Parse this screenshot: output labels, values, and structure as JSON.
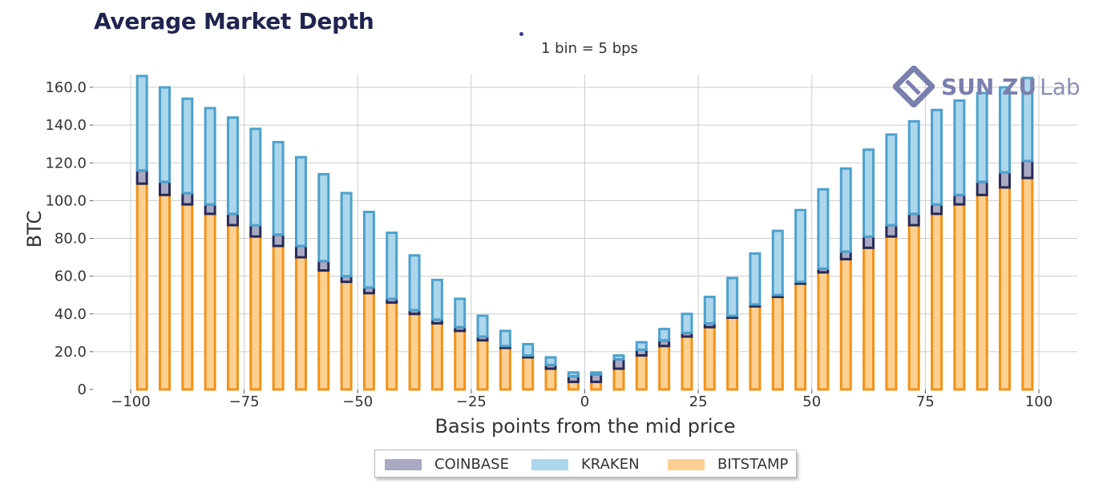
{
  "header": {
    "title": "Average Market Depth",
    "subtitle": "1 bin = 5 bps"
  },
  "logo": {
    "bold_text": "SUN ZU",
    "light_text": "Lab",
    "icon": "sunzu-logo-icon",
    "color": "#7a7fae"
  },
  "legend": {
    "items": [
      {
        "label": "COINBASE",
        "color": "#a9a9c3"
      },
      {
        "label": "KRAKEN",
        "color": "#acd6ec"
      },
      {
        "label": "BITSTAMP",
        "color": "#fdd091"
      }
    ]
  },
  "colors": {
    "coinbase_fill": "#a9a9c3",
    "coinbase_edge": "#262b57",
    "kraken_fill": "#acd6ec",
    "kraken_edge": "#4da1cc",
    "bitstamp_fill": "#fdd091",
    "bitstamp_edge": "#f29219",
    "grid": "#cccccc"
  },
  "chart_data": {
    "type": "bar",
    "stacked": true,
    "title": "Average Market Depth",
    "subtitle": "1 bin = 5 bps",
    "xlabel": "Basis points from the mid price",
    "ylabel": "BTC",
    "xlim": [
      -100,
      100
    ],
    "ylim": [
      0,
      165
    ],
    "xticks": [
      -100,
      -75,
      -50,
      -25,
      0,
      25,
      50,
      75,
      100
    ],
    "xtick_labels": [
      "−100",
      "−75",
      "−50",
      "−25",
      "0",
      "25",
      "50",
      "75",
      "100"
    ],
    "yticks": [
      0,
      20,
      40,
      60,
      80,
      100,
      120,
      140,
      160
    ],
    "ytick_labels": [
      "0",
      "20.0",
      "40.0",
      "60.0",
      "80.0",
      "100.0",
      "120.0",
      "140.0",
      "160.0"
    ],
    "grid": true,
    "legend_position": "bottom-center",
    "x": [
      -97.5,
      -92.5,
      -87.5,
      -82.5,
      -77.5,
      -72.5,
      -67.5,
      -62.5,
      -57.5,
      -52.5,
      -47.5,
      -42.5,
      -37.5,
      -32.5,
      -27.5,
      -22.5,
      -17.5,
      -12.5,
      -7.5,
      -2.5,
      2.5,
      7.5,
      12.5,
      17.5,
      22.5,
      27.5,
      32.5,
      37.5,
      42.5,
      47.5,
      52.5,
      57.5,
      62.5,
      67.5,
      72.5,
      77.5,
      82.5,
      87.5,
      92.5,
      97.5
    ],
    "series": [
      {
        "name": "BITSTAMP",
        "values": [
          109,
          103,
          98,
          93,
          87,
          81,
          76,
          70,
          63,
          57,
          51,
          46,
          40,
          35,
          31,
          26,
          22,
          17,
          11,
          4,
          4,
          11,
          18,
          23,
          28,
          33,
          38,
          44,
          49,
          56,
          62,
          69,
          75,
          81,
          87,
          93,
          98,
          103,
          107,
          112
        ]
      },
      {
        "name": "COINBASE",
        "values": [
          7,
          7,
          6,
          5,
          6,
          6,
          6,
          6,
          5,
          3,
          3,
          2,
          2,
          2,
          2,
          2,
          1,
          1,
          2,
          3,
          4,
          5,
          3,
          3,
          2,
          2,
          1,
          1,
          1,
          1,
          2,
          4,
          6,
          6,
          6,
          5,
          5,
          7,
          8,
          9
        ]
      },
      {
        "name": "KRAKEN",
        "values": [
          50,
          50,
          50,
          51,
          51,
          51,
          49,
          47,
          46,
          44,
          40,
          35,
          29,
          21,
          15,
          11,
          8,
          6,
          4,
          2,
          1,
          2,
          4,
          6,
          10,
          14,
          20,
          27,
          34,
          38,
          42,
          44,
          46,
          48,
          49,
          50,
          50,
          47,
          45,
          44
        ]
      }
    ]
  }
}
